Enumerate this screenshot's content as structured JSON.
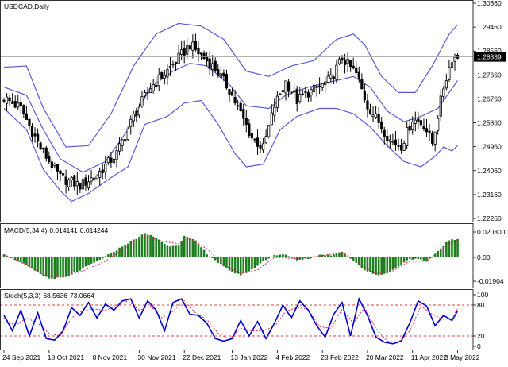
{
  "chart_data": [
    {
      "type": "candlestick",
      "title": "USDCAD,Daily",
      "symbol": "USDCAD",
      "timeframe": "Daily",
      "y_ticks": [
        "1.30360",
        "1.29460",
        "1.28560",
        "1.27660",
        "1.26760",
        "1.25860",
        "1.24960",
        "1.24060",
        "1.23160",
        "1.22260"
      ],
      "ylim": [
        1.2226,
        1.3036
      ],
      "last_price": "1.28339",
      "last_price_value": 1.28339,
      "x_labels": [
        "24 Sep 2021",
        "18 Oct 2021",
        "8 Nov 2021",
        "30 Nov 2021",
        "22 Dec 2021",
        "13 Jan 2022",
        "4 Feb 2022",
        "28 Feb 2022",
        "20 Mar 2022",
        "11 Apr 2022",
        "3 May 2022"
      ],
      "bars": 162,
      "close_anchors": [
        [
          0,
          1.268
        ],
        [
          6,
          1.264
        ],
        [
          13,
          1.249
        ],
        [
          20,
          1.238
        ],
        [
          27,
          1.235
        ],
        [
          33,
          1.239
        ],
        [
          40,
          1.247
        ],
        [
          46,
          1.261
        ],
        [
          52,
          1.272
        ],
        [
          57,
          1.277
        ],
        [
          62,
          1.283
        ],
        [
          66,
          1.288
        ],
        [
          70,
          1.284
        ],
        [
          75,
          1.279
        ],
        [
          80,
          1.271
        ],
        [
          84,
          1.262
        ],
        [
          88,
          1.253
        ],
        [
          92,
          1.249
        ],
        [
          96,
          1.265
        ],
        [
          100,
          1.274
        ],
        [
          104,
          1.267
        ],
        [
          108,
          1.27
        ],
        [
          112,
          1.272
        ],
        [
          116,
          1.275
        ],
        [
          120,
          1.283
        ],
        [
          125,
          1.277
        ],
        [
          129,
          1.265
        ],
        [
          133,
          1.259
        ],
        [
          137,
          1.252
        ],
        [
          141,
          1.25
        ],
        [
          145,
          1.26
        ],
        [
          149,
          1.258
        ],
        [
          152,
          1.251
        ],
        [
          156,
          1.272
        ],
        [
          159,
          1.283
        ],
        [
          161,
          1.2834
        ]
      ],
      "bollinger": {
        "upper": [
          [
            0,
            1.2795
          ],
          [
            8,
            1.28
          ],
          [
            14,
            1.264
          ],
          [
            22,
            1.2495
          ],
          [
            30,
            1.25
          ],
          [
            38,
            1.262
          ],
          [
            46,
            1.28
          ],
          [
            54,
            1.292
          ],
          [
            62,
            1.296
          ],
          [
            70,
            1.295
          ],
          [
            78,
            1.29
          ],
          [
            86,
            1.278
          ],
          [
            94,
            1.276
          ],
          [
            102,
            1.28
          ],
          [
            110,
            1.282
          ],
          [
            118,
            1.29
          ],
          [
            124,
            1.292
          ],
          [
            128,
            1.288
          ],
          [
            134,
            1.276
          ],
          [
            140,
            1.27
          ],
          [
            146,
            1.27
          ],
          [
            152,
            1.28
          ],
          [
            158,
            1.292
          ],
          [
            161,
            1.2955
          ]
        ],
        "middle": [
          [
            0,
            1.272
          ],
          [
            8,
            1.269
          ],
          [
            14,
            1.256
          ],
          [
            20,
            1.245
          ],
          [
            28,
            1.24
          ],
          [
            36,
            1.244
          ],
          [
            44,
            1.256
          ],
          [
            52,
            1.272
          ],
          [
            60,
            1.278
          ],
          [
            66,
            1.281
          ],
          [
            72,
            1.28
          ],
          [
            80,
            1.273
          ],
          [
            86,
            1.265
          ],
          [
            94,
            1.264
          ],
          [
            100,
            1.269
          ],
          [
            108,
            1.272
          ],
          [
            116,
            1.274
          ],
          [
            124,
            1.276
          ],
          [
            130,
            1.272
          ],
          [
            136,
            1.263
          ],
          [
            142,
            1.259
          ],
          [
            148,
            1.261
          ],
          [
            154,
            1.264
          ],
          [
            158,
            1.27
          ],
          [
            161,
            1.2745
          ]
        ],
        "lower": [
          [
            0,
            1.264
          ],
          [
            8,
            1.256
          ],
          [
            14,
            1.241
          ],
          [
            20,
            1.233
          ],
          [
            24,
            1.229
          ],
          [
            30,
            1.232
          ],
          [
            38,
            1.238
          ],
          [
            44,
            1.242
          ],
          [
            50,
            1.258
          ],
          [
            58,
            1.261
          ],
          [
            64,
            1.266
          ],
          [
            70,
            1.267
          ],
          [
            76,
            1.258
          ],
          [
            82,
            1.247
          ],
          [
            86,
            1.242
          ],
          [
            92,
            1.243
          ],
          [
            98,
            1.256
          ],
          [
            104,
            1.261
          ],
          [
            112,
            1.264
          ],
          [
            118,
            1.264
          ],
          [
            124,
            1.262
          ],
          [
            130,
            1.257
          ],
          [
            136,
            1.25
          ],
          [
            142,
            1.244
          ],
          [
            148,
            1.242
          ],
          [
            153,
            1.246
          ],
          [
            156,
            1.2495
          ],
          [
            159,
            1.248
          ],
          [
            161,
            1.25
          ]
        ]
      }
    },
    {
      "type": "bar",
      "title": "MACD(5,34,4)",
      "values_text": [
        "0.014141",
        "0.014244"
      ],
      "y_ticks": [
        "0.020300",
        "0.00",
        "-0.01904"
      ],
      "ylim": [
        -0.01904,
        0.0203
      ],
      "histogram_anchors": [
        [
          0,
          0.003
        ],
        [
          6,
          -0.004
        ],
        [
          12,
          -0.012
        ],
        [
          16,
          -0.017
        ],
        [
          22,
          -0.016
        ],
        [
          28,
          -0.009
        ],
        [
          34,
          -0.002
        ],
        [
          40,
          0.006
        ],
        [
          46,
          0.014
        ],
        [
          50,
          0.019
        ],
        [
          54,
          0.016
        ],
        [
          58,
          0.009
        ],
        [
          62,
          0.01
        ],
        [
          64,
          0.017
        ],
        [
          68,
          0.013
        ],
        [
          72,
          0.003
        ],
        [
          76,
          -0.004
        ],
        [
          80,
          -0.011
        ],
        [
          84,
          -0.014
        ],
        [
          88,
          -0.01
        ],
        [
          92,
          -0.003
        ],
        [
          96,
          0.002
        ],
        [
          100,
          0.002
        ],
        [
          104,
          -0.002
        ],
        [
          108,
          -0.001
        ],
        [
          112,
          0.002
        ],
        [
          116,
          0.002
        ],
        [
          120,
          0.005
        ],
        [
          124,
          -0.003
        ],
        [
          128,
          -0.01
        ],
        [
          132,
          -0.014
        ],
        [
          136,
          -0.013
        ],
        [
          140,
          -0.007
        ],
        [
          144,
          -0.001
        ],
        [
          148,
          -0.002
        ],
        [
          150,
          -0.004
        ],
        [
          154,
          0.005
        ],
        [
          158,
          0.014
        ],
        [
          161,
          0.0141
        ]
      ],
      "signal_anchors": [
        [
          0,
          0.002
        ],
        [
          8,
          -0.006
        ],
        [
          14,
          -0.014
        ],
        [
          20,
          -0.016
        ],
        [
          28,
          -0.011
        ],
        [
          36,
          -0.003
        ],
        [
          44,
          0.009
        ],
        [
          50,
          0.017
        ],
        [
          56,
          0.013
        ],
        [
          62,
          0.011
        ],
        [
          66,
          0.015
        ],
        [
          72,
          0.007
        ],
        [
          78,
          -0.006
        ],
        [
          84,
          -0.013
        ],
        [
          90,
          -0.01
        ],
        [
          96,
          0.0
        ],
        [
          104,
          -0.001
        ],
        [
          112,
          0.001
        ],
        [
          120,
          0.004
        ],
        [
          126,
          -0.005
        ],
        [
          132,
          -0.013
        ],
        [
          138,
          -0.011
        ],
        [
          144,
          -0.003
        ],
        [
          150,
          -0.003
        ],
        [
          156,
          0.008
        ],
        [
          161,
          0.0142
        ]
      ]
    },
    {
      "type": "line",
      "title": "Stoch(5,3,3)",
      "values_text": [
        "68.5636",
        "73.0664"
      ],
      "y_ticks": [
        "100",
        "80",
        "20",
        "0"
      ],
      "ylim": [
        0,
        100
      ],
      "levels": [
        20,
        80
      ],
      "main_anchors": [
        [
          0,
          60
        ],
        [
          3,
          30
        ],
        [
          6,
          70
        ],
        [
          9,
          20
        ],
        [
          12,
          65
        ],
        [
          15,
          15
        ],
        [
          18,
          12
        ],
        [
          21,
          30
        ],
        [
          24,
          75
        ],
        [
          27,
          60
        ],
        [
          30,
          85
        ],
        [
          33,
          55
        ],
        [
          36,
          82
        ],
        [
          39,
          70
        ],
        [
          42,
          88
        ],
        [
          45,
          92
        ],
        [
          48,
          55
        ],
        [
          51,
          88
        ],
        [
          54,
          70
        ],
        [
          57,
          30
        ],
        [
          60,
          85
        ],
        [
          63,
          92
        ],
        [
          66,
          62
        ],
        [
          69,
          60
        ],
        [
          72,
          45
        ],
        [
          75,
          15
        ],
        [
          78,
          10
        ],
        [
          81,
          15
        ],
        [
          84,
          50
        ],
        [
          87,
          20
        ],
        [
          90,
          48
        ],
        [
          93,
          15
        ],
        [
          96,
          45
        ],
        [
          99,
          80
        ],
        [
          102,
          55
        ],
        [
          105,
          88
        ],
        [
          108,
          70
        ],
        [
          111,
          40
        ],
        [
          114,
          18
        ],
        [
          117,
          62
        ],
        [
          120,
          85
        ],
        [
          123,
          20
        ],
        [
          126,
          92
        ],
        [
          129,
          60
        ],
        [
          132,
          18
        ],
        [
          135,
          8
        ],
        [
          138,
          5
        ],
        [
          141,
          10
        ],
        [
          144,
          45
        ],
        [
          147,
          88
        ],
        [
          150,
          78
        ],
        [
          153,
          40
        ],
        [
          156,
          60
        ],
        [
          159,
          50
        ],
        [
          161,
          68.5636
        ]
      ],
      "signal_anchors": [
        [
          0,
          55
        ],
        [
          4,
          40
        ],
        [
          8,
          55
        ],
        [
          12,
          45
        ],
        [
          16,
          25
        ],
        [
          20,
          20
        ],
        [
          24,
          55
        ],
        [
          28,
          70
        ],
        [
          32,
          72
        ],
        [
          36,
          70
        ],
        [
          40,
          78
        ],
        [
          44,
          88
        ],
        [
          48,
          70
        ],
        [
          52,
          78
        ],
        [
          56,
          55
        ],
        [
          60,
          68
        ],
        [
          64,
          88
        ],
        [
          68,
          65
        ],
        [
          72,
          52
        ],
        [
          76,
          25
        ],
        [
          80,
          14
        ],
        [
          84,
          35
        ],
        [
          88,
          30
        ],
        [
          92,
          30
        ],
        [
          96,
          38
        ],
        [
          100,
          68
        ],
        [
          104,
          75
        ],
        [
          108,
          72
        ],
        [
          112,
          38
        ],
        [
          116,
          35
        ],
        [
          120,
          72
        ],
        [
          124,
          45
        ],
        [
          128,
          75
        ],
        [
          132,
          35
        ],
        [
          136,
          10
        ],
        [
          140,
          8
        ],
        [
          144,
          30
        ],
        [
          148,
          78
        ],
        [
          152,
          62
        ],
        [
          156,
          52
        ],
        [
          159,
          55
        ],
        [
          161,
          73.0664
        ]
      ]
    }
  ],
  "colors": {
    "background": "#ffffff",
    "candle": "#000000",
    "bollinger": "#5a5ad6",
    "macd_histogram": "#1e7d1e",
    "macd_signal": "#e0245e",
    "stoch_main": "#0000cc",
    "stoch_signal": "#e0245e",
    "stoch_level": "#cc0000",
    "last_price_bg": "#000000",
    "last_price_text": "#ffffff",
    "grid_line": "#999999"
  }
}
